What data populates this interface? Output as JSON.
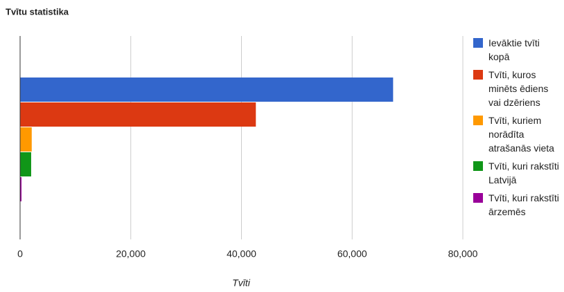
{
  "chart_data": {
    "type": "bar",
    "orientation": "horizontal",
    "title": "Tvītu statistika",
    "categories": [
      null
    ],
    "series": [
      {
        "name": "Ievāktie tvīti kopā",
        "color": "#3366cc",
        "values": [
          67400
        ]
      },
      {
        "name": "Tvīti, kuros minēts ēdiens vai dzēriens",
        "color": "#dc3912",
        "values": [
          42600
        ]
      },
      {
        "name": "Tvīti, kuriem norādīta atrašanās vieta",
        "color": "#ff9900",
        "values": [
          2100
        ]
      },
      {
        "name": "Tvīti, kuri rakstīti Latvijā",
        "color": "#109618",
        "values": [
          2000
        ]
      },
      {
        "name": "Tvīti, kuri rakstīti ārzemēs",
        "color": "#990099",
        "values": [
          250
        ]
      }
    ],
    "x_label": "Tvīti",
    "xlim": [
      0,
      80000
    ],
    "xticks": [
      0,
      {
        "value": 20000,
        "label": "20,000"
      },
      {
        "value": 40000,
        "label": "40,000"
      },
      {
        "value": 60000,
        "label": "60,000"
      },
      {
        "value": 80000,
        "label": "80,000"
      }
    ],
    "grid": true,
    "legend": "right"
  }
}
